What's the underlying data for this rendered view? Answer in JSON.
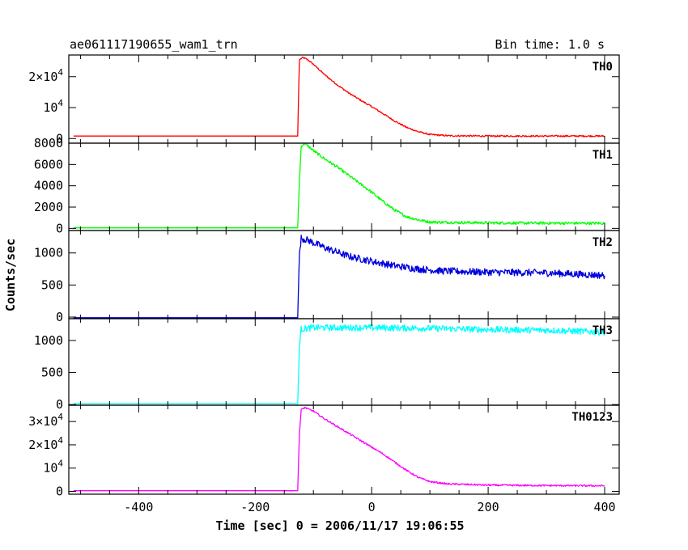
{
  "chart_data": {
    "type": "line",
    "title": "ae061117190655_wam1_trn",
    "subtitle": "Bin time: 1.0 s",
    "xlabel": "Time [sec] 0 = 2006/11/17 19:06:55",
    "ylabel": "Counts/sec",
    "xlim": [
      -520,
      425
    ],
    "x_ticks": [
      -400,
      -200,
      0,
      200,
      400
    ],
    "grid": false,
    "legend": "none",
    "panels": [
      {
        "name": "TH0",
        "color": "#ff0000",
        "ylim": [
          -1500,
          27000
        ],
        "ticks": [
          {
            "v": 20000,
            "base": "2×10",
            "exp": "4"
          },
          {
            "v": 10000,
            "base": "10",
            "exp": "4"
          },
          {
            "v": 0,
            "base": "0",
            "exp": ""
          }
        ],
        "points": [
          [
            -520,
            800
          ],
          [
            -127,
            800
          ],
          [
            -125,
            18000
          ],
          [
            -124,
            25500
          ],
          [
            -118,
            26200
          ],
          [
            -110,
            25500
          ],
          [
            -100,
            24000
          ],
          [
            -80,
            20500
          ],
          [
            -60,
            17500
          ],
          [
            -40,
            14800
          ],
          [
            -20,
            12500
          ],
          [
            0,
            10300
          ],
          [
            20,
            8000
          ],
          [
            40,
            5600
          ],
          [
            60,
            3600
          ],
          [
            80,
            2200
          ],
          [
            100,
            1300
          ],
          [
            130,
            900
          ],
          [
            200,
            800
          ],
          [
            400,
            800
          ]
        ],
        "noise": 250
      },
      {
        "name": "TH1",
        "color": "#00ff00",
        "ylim": [
          -200,
          8000
        ],
        "ticks": [
          {
            "v": 8000,
            "base": "8000",
            "exp": ""
          },
          {
            "v": 6000,
            "base": "6000",
            "exp": ""
          },
          {
            "v": 4000,
            "base": "4000",
            "exp": ""
          },
          {
            "v": 2000,
            "base": "2000",
            "exp": ""
          },
          {
            "v": 0,
            "base": "0",
            "exp": ""
          }
        ],
        "points": [
          [
            -520,
            50
          ],
          [
            -127,
            50
          ],
          [
            -124,
            4500
          ],
          [
            -121,
            7700
          ],
          [
            -115,
            8000
          ],
          [
            -100,
            7300
          ],
          [
            -80,
            6500
          ],
          [
            -60,
            5800
          ],
          [
            -40,
            5000
          ],
          [
            -20,
            4200
          ],
          [
            0,
            3400
          ],
          [
            20,
            2500
          ],
          [
            40,
            1700
          ],
          [
            60,
            1100
          ],
          [
            80,
            800
          ],
          [
            100,
            600
          ],
          [
            150,
            550
          ],
          [
            250,
            500
          ],
          [
            400,
            480
          ]
        ],
        "noise": 130
      },
      {
        "name": "TH2",
        "color": "#0000dd",
        "ylim": [
          -25,
          1350
        ],
        "ticks": [
          {
            "v": 1000,
            "base": "1000",
            "exp": ""
          },
          {
            "v": 500,
            "base": "500",
            "exp": ""
          },
          {
            "v": 0,
            "base": "0",
            "exp": ""
          }
        ],
        "points": [
          [
            -520,
            -10
          ],
          [
            -127,
            -10
          ],
          [
            -124,
            1000
          ],
          [
            -121,
            1230
          ],
          [
            -110,
            1200
          ],
          [
            -80,
            1080
          ],
          [
            -40,
            950
          ],
          [
            0,
            870
          ],
          [
            40,
            800
          ],
          [
            80,
            750
          ],
          [
            120,
            720
          ],
          [
            200,
            700
          ],
          [
            300,
            690
          ],
          [
            400,
            650
          ]
        ],
        "noise": 55
      },
      {
        "name": "TH3",
        "color": "#00ffff",
        "ylim": [
          -10,
          1340
        ],
        "ticks": [
          {
            "v": 1000,
            "base": "1000",
            "exp": ""
          },
          {
            "v": 500,
            "base": "500",
            "exp": ""
          },
          {
            "v": 0,
            "base": "0",
            "exp": ""
          }
        ],
        "points": [
          [
            -520,
            15
          ],
          [
            -127,
            15
          ],
          [
            -124,
            900
          ],
          [
            -121,
            1180
          ],
          [
            -100,
            1200
          ],
          [
            0,
            1200
          ],
          [
            100,
            1190
          ],
          [
            200,
            1170
          ],
          [
            300,
            1160
          ],
          [
            400,
            1130
          ]
        ],
        "noise": 50
      },
      {
        "name": "TH0123",
        "color": "#ff00ff",
        "ylim": [
          -1200,
          37000
        ],
        "ticks": [
          {
            "v": 30000,
            "base": "3×10",
            "exp": "4"
          },
          {
            "v": 20000,
            "base": "2×10",
            "exp": "4"
          },
          {
            "v": 10000,
            "base": "10",
            "exp": "4"
          },
          {
            "v": 0,
            "base": "0",
            "exp": ""
          }
        ],
        "points": [
          [
            -520,
            300
          ],
          [
            -127,
            300
          ],
          [
            -124,
            25000
          ],
          [
            -121,
            35000
          ],
          [
            -115,
            36000
          ],
          [
            -100,
            34500
          ],
          [
            -80,
            31000
          ],
          [
            -60,
            28000
          ],
          [
            -40,
            25000
          ],
          [
            -20,
            22000
          ],
          [
            0,
            19000
          ],
          [
            20,
            16000
          ],
          [
            40,
            12500
          ],
          [
            60,
            9000
          ],
          [
            80,
            6000
          ],
          [
            100,
            4200
          ],
          [
            130,
            3200
          ],
          [
            200,
            2700
          ],
          [
            300,
            2500
          ],
          [
            400,
            2400
          ]
        ],
        "noise": 350
      }
    ]
  }
}
